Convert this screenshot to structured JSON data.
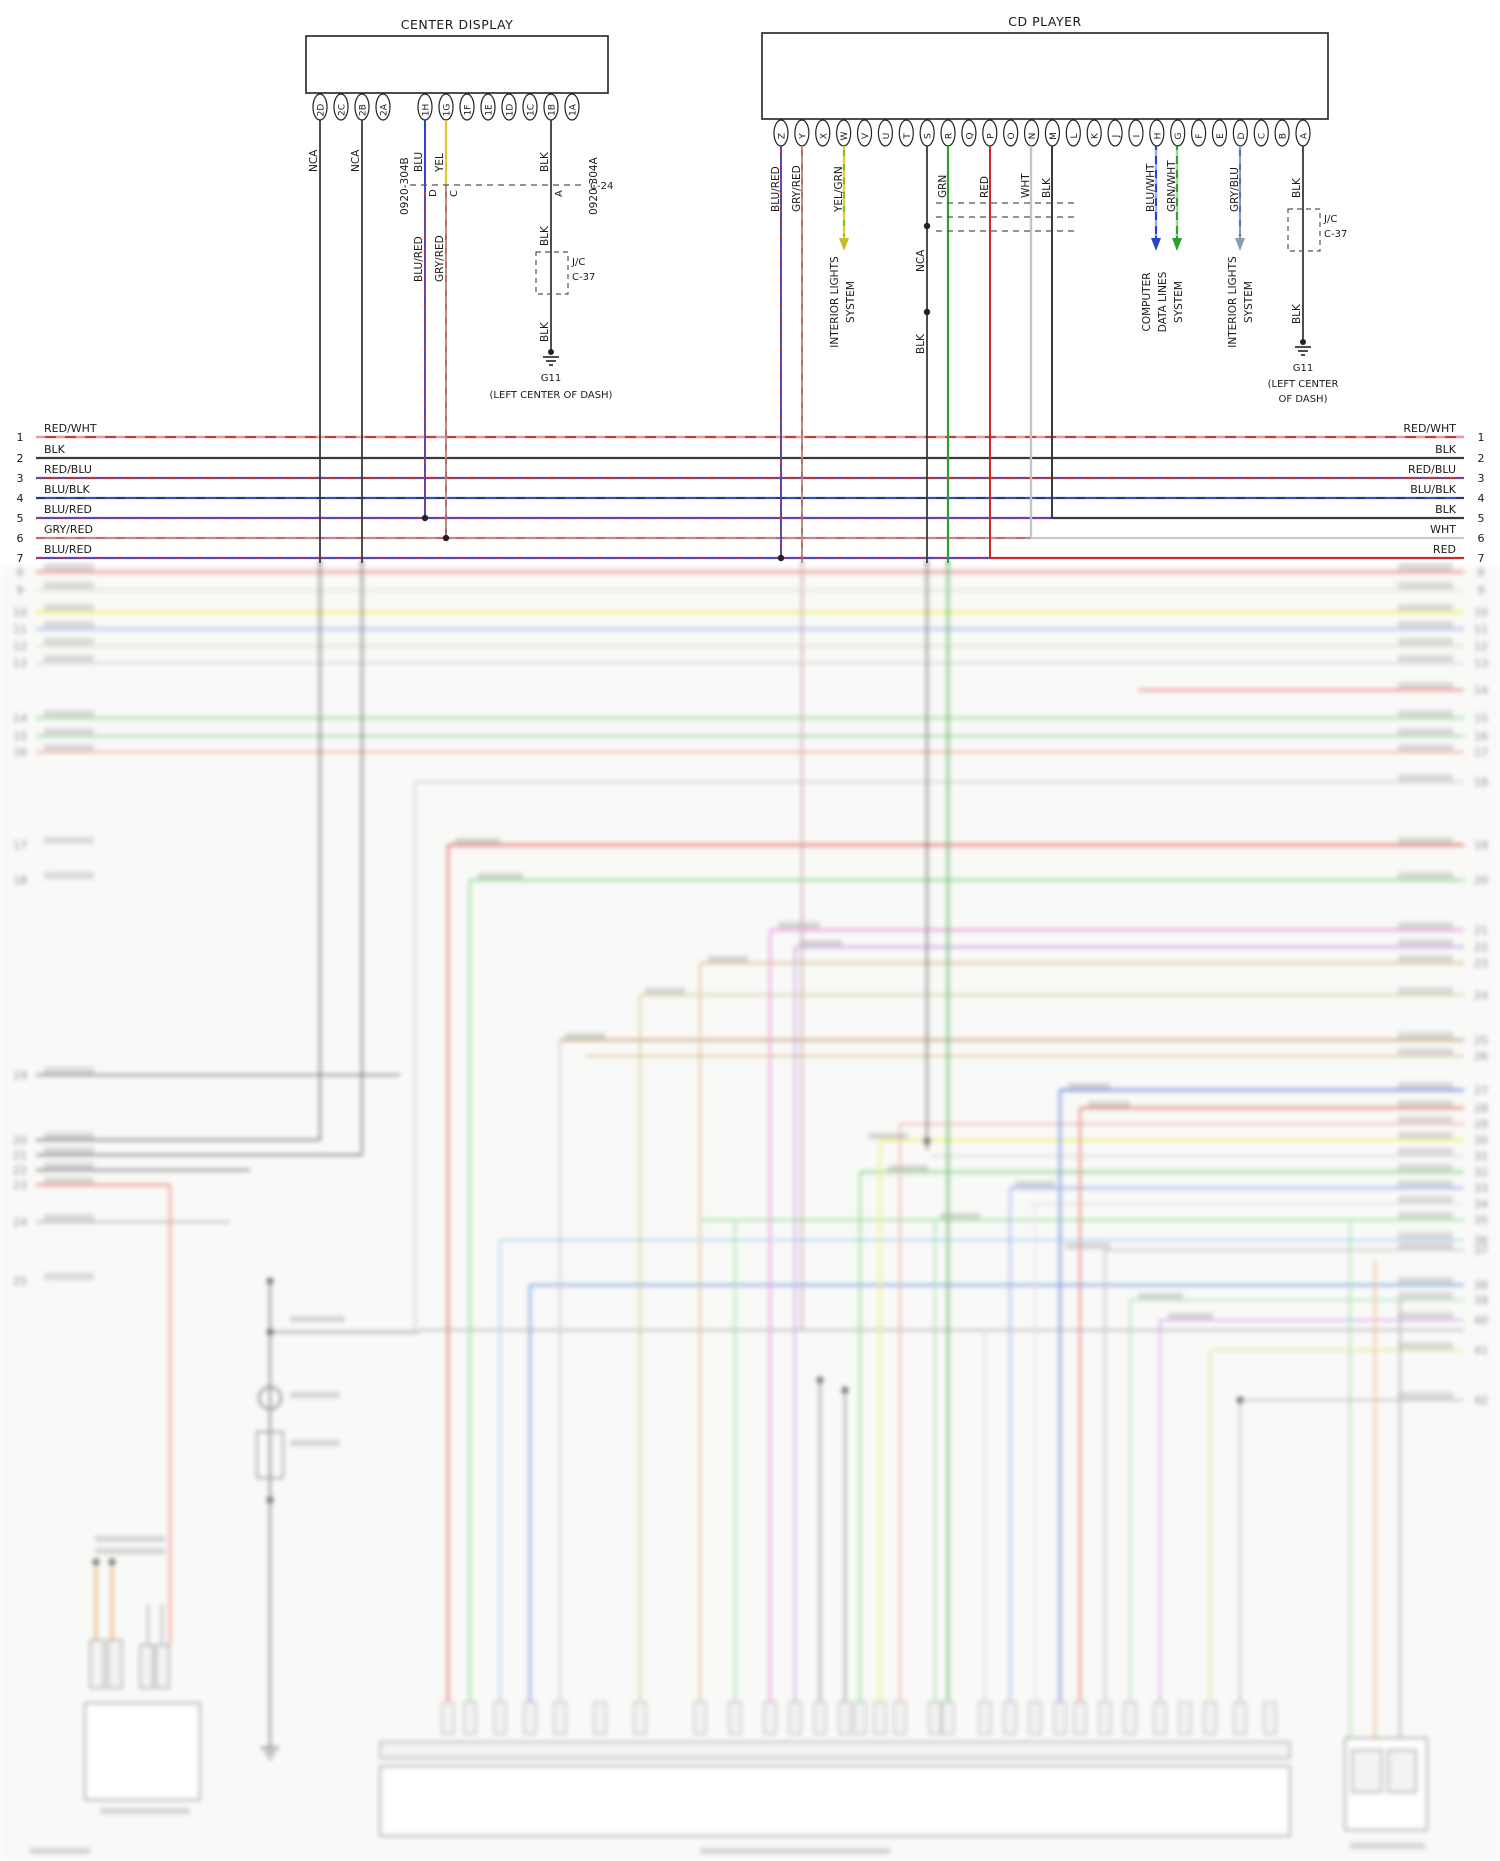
{
  "diagram": {
    "center_display": {
      "title": "CENTER DISPLAY",
      "pin_labels": [
        "2D",
        "2C",
        "2B",
        "2A",
        "1H",
        "1G",
        "1F",
        "1E",
        "1D",
        "1C",
        "1B",
        "1A"
      ],
      "connector_ids": [
        "0920-304B",
        "0920-304A"
      ],
      "wire_labels": {
        "nca_2d": "NCA",
        "nca_2b": "NCA",
        "blu_1h": "BLU",
        "yel_1g": "YEL",
        "blk_1b": "BLK"
      },
      "c24": {
        "id": "C-24",
        "pin_d": "D",
        "pin_c": "C",
        "pin_a": "A",
        "wire_d": "BLU/RED",
        "wire_c": "GRY/RED",
        "wire_a": "BLK"
      },
      "junction": {
        "line1": "J/C",
        "line2": "C-37"
      },
      "ground_wire": "BLK",
      "ground": {
        "id": "G11",
        "location": "(LEFT CENTER OF DASH)"
      }
    },
    "cd_player": {
      "title": "CD PLAYER",
      "pin_labels": [
        "Z",
        "Y",
        "X",
        "W",
        "V",
        "U",
        "T",
        "S",
        "R",
        "Q",
        "P",
        "O",
        "N",
        "M",
        "L",
        "K",
        "J",
        "I",
        "H",
        "G",
        "F",
        "E",
        "D",
        "C",
        "B",
        "A"
      ],
      "wire_labels": {
        "z": "BLU/RED",
        "y": "GRY/RED",
        "w": "YEL/GRN",
        "s_upper": "NCA",
        "s_lower": "BLK",
        "r": "GRN",
        "p": "RED",
        "n": "WHT",
        "m": "BLK",
        "h": "BLU/WHT",
        "g": "GRN/WHT",
        "d": "GRY/BLU",
        "a": "BLK",
        "a_lower": "BLK"
      },
      "systems": {
        "interior_left": [
          "INTERIOR LIGHTS",
          "SYSTEM"
        ],
        "computer": [
          "COMPUTER",
          "DATA LINES",
          "SYSTEM"
        ],
        "interior_right": [
          "INTERIOR LIGHTS",
          "SYSTEM"
        ]
      },
      "junction": {
        "line1": "J/C",
        "line2": "C-37"
      },
      "ground": {
        "id": "G11",
        "location_line1": "(LEFT CENTER",
        "location_line2": "OF DASH)"
      }
    },
    "rows": [
      {
        "num": "1",
        "left": "RED/WHT",
        "right": "RED/WHT"
      },
      {
        "num": "2",
        "left": "BLK",
        "right": "BLK"
      },
      {
        "num": "3",
        "left": "RED/BLU",
        "right": "RED/BLU"
      },
      {
        "num": "4",
        "left": "BLU/BLK",
        "right": "BLU/BLK"
      },
      {
        "num": "5",
        "left": "BLU/RED",
        "right": "BLK"
      },
      {
        "num": "6",
        "left": "GRY/RED",
        "right": "WHT"
      },
      {
        "num": "7",
        "left": "BLU/RED",
        "right": "RED"
      }
    ],
    "wire_colors": {
      "red": "#c43c3c",
      "black": "#3a3a3a",
      "blue": "#3052b8",
      "blu_red": "#5246c4",
      "gry_red": "#b59090",
      "yellow": "#d8cc30",
      "green": "#2e9e2e",
      "white_wire": "#c4c4c4",
      "gry_blu": "#8b9bb5",
      "blu_wht": "#2a46c8",
      "red_blu": "#a83a4a"
    }
  }
}
